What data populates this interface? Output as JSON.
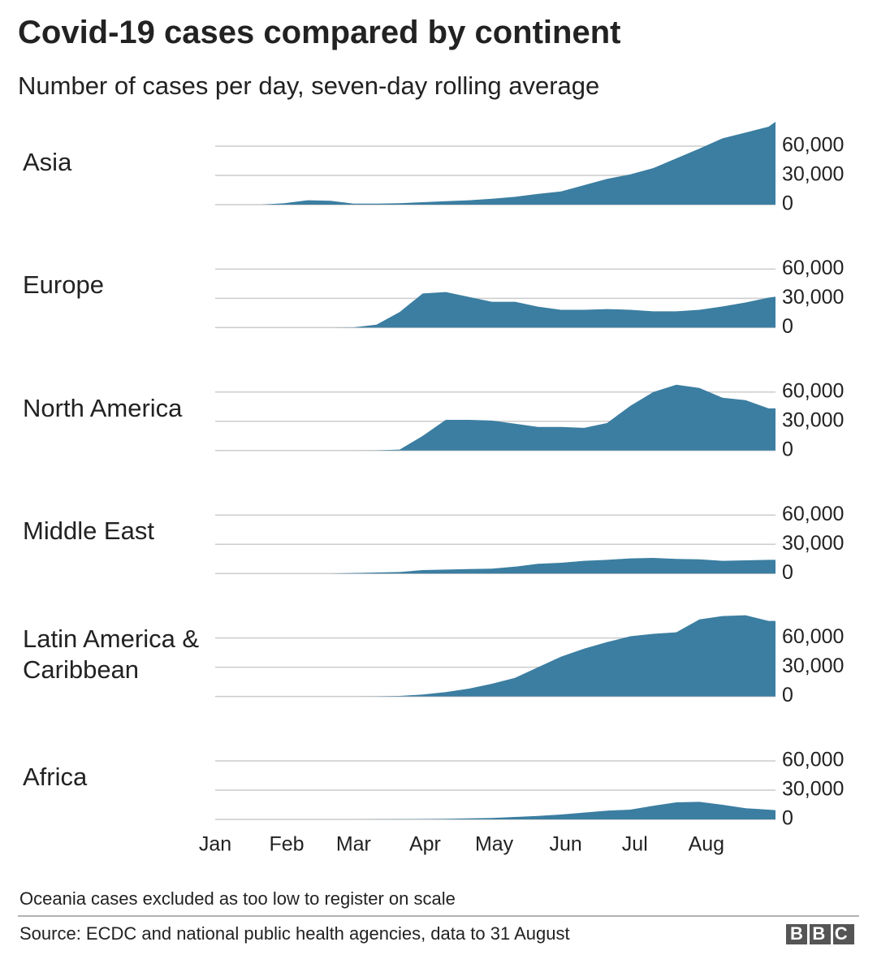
{
  "chart_data": {
    "type": "area",
    "title": "Covid-19 cases compared by continent",
    "subtitle": "Number of cases per day, seven-day rolling average",
    "note": "Oceania cases excluded as too low to register on scale",
    "source": "Source: ECDC and national public health agencies, data to 31 August",
    "logo": "BBC",
    "x": [
      0,
      10,
      20,
      30,
      40,
      50,
      60,
      70,
      80,
      90,
      100,
      110,
      120,
      130,
      140,
      150,
      160,
      170,
      180,
      190,
      200,
      210,
      220,
      230,
      240,
      243
    ],
    "xlim": [
      0,
      243
    ],
    "xticks": [
      {
        "value": 0,
        "label": "Jan"
      },
      {
        "value": 31,
        "label": "Feb"
      },
      {
        "value": 60,
        "label": "Mar"
      },
      {
        "value": 91,
        "label": "Apr"
      },
      {
        "value": 121,
        "label": "May"
      },
      {
        "value": 152,
        "label": "Jun"
      },
      {
        "value": 182,
        "label": "Jul"
      },
      {
        "value": 213,
        "label": "Aug"
      }
    ],
    "ylim": [
      0,
      90000
    ],
    "yticks": [
      0,
      {
        "value": 30000,
        "label": "30,000"
      },
      {
        "value": 60000,
        "label": "60,000"
      }
    ],
    "grid": true,
    "series": [
      {
        "name": "Asia",
        "color": "#3b7ea1",
        "values": [
          0,
          0,
          0,
          1500,
          4500,
          4000,
          1000,
          1000,
          1500,
          2500,
          3500,
          4500,
          6000,
          8000,
          11000,
          13500,
          20000,
          26500,
          31000,
          37500,
          47500,
          57500,
          68000,
          74000,
          80000,
          85000
        ]
      },
      {
        "name": "Europe",
        "color": "#3b7ea1",
        "values": [
          0,
          0,
          0,
          0,
          0,
          0,
          200,
          3000,
          16000,
          35000,
          36500,
          31500,
          26500,
          26500,
          21500,
          18300,
          18300,
          19000,
          18300,
          16700,
          16700,
          18300,
          21700,
          25800,
          30800,
          31700
        ]
      },
      {
        "name": "North America",
        "color": "#3b7ea1",
        "values": [
          0,
          0,
          0,
          0,
          0,
          0,
          0,
          100,
          1000,
          15000,
          31500,
          31500,
          30800,
          27500,
          24200,
          24200,
          23300,
          28300,
          45800,
          60000,
          67500,
          64200,
          54200,
          51700,
          43300,
          43300
        ]
      },
      {
        "name": "Middle East",
        "color": "#3b7ea1",
        "values": [
          0,
          0,
          0,
          0,
          0,
          0,
          500,
          1000,
          1500,
          3500,
          4000,
          4500,
          5000,
          7000,
          10000,
          11000,
          13000,
          14000,
          15500,
          16000,
          15000,
          14500,
          13000,
          13500,
          14000,
          14000
        ]
      },
      {
        "name": "Latin America & Caribbean",
        "color": "#3b7ea1",
        "values": [
          0,
          0,
          0,
          0,
          0,
          0,
          0,
          100,
          500,
          2000,
          4500,
          8000,
          13000,
          19000,
          30000,
          40800,
          49000,
          55800,
          61700,
          64200,
          65800,
          79000,
          82500,
          83300,
          77500,
          77500
        ]
      },
      {
        "name": "Africa",
        "color": "#3b7ea1",
        "values": [
          0,
          0,
          0,
          0,
          0,
          0,
          0,
          100,
          200,
          300,
          500,
          1000,
          1500,
          2500,
          3500,
          5000,
          7000,
          9000,
          10000,
          14000,
          17500,
          18000,
          15000,
          11500,
          10000,
          9500
        ]
      }
    ]
  }
}
